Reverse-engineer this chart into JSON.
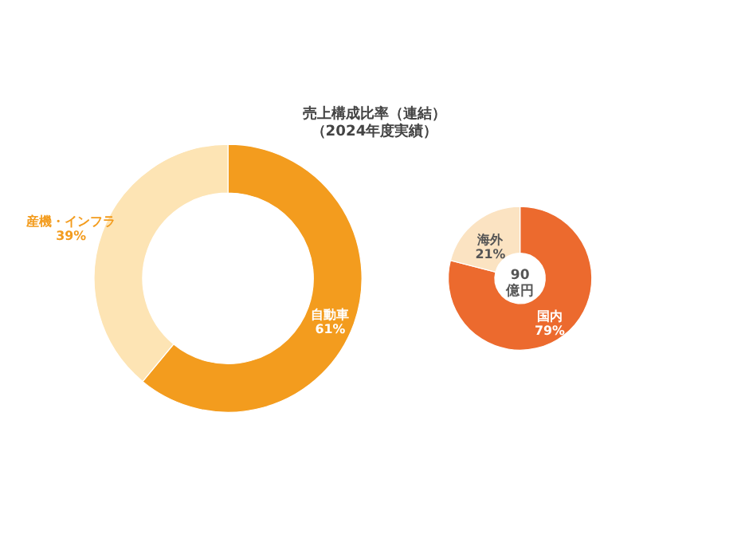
{
  "chart_data": [
    {
      "type": "donut",
      "title": "売上構成比率（連結）",
      "subtitle": "（2024年度実績）",
      "categories": [
        "自動車",
        "産機・インフラ"
      ],
      "values": [
        61,
        39
      ],
      "colors": [
        "#f39c1e",
        "#fde4b4"
      ],
      "value_labels": [
        "61%",
        "39%"
      ]
    },
    {
      "type": "donut",
      "categories": [
        "国内",
        "海外"
      ],
      "values": [
        79,
        21
      ],
      "colors": [
        "#ec6a2e",
        "#fbe3c2"
      ],
      "value_labels": [
        "79%",
        "21%"
      ],
      "annotations": [
        "90",
        "億円"
      ]
    }
  ]
}
